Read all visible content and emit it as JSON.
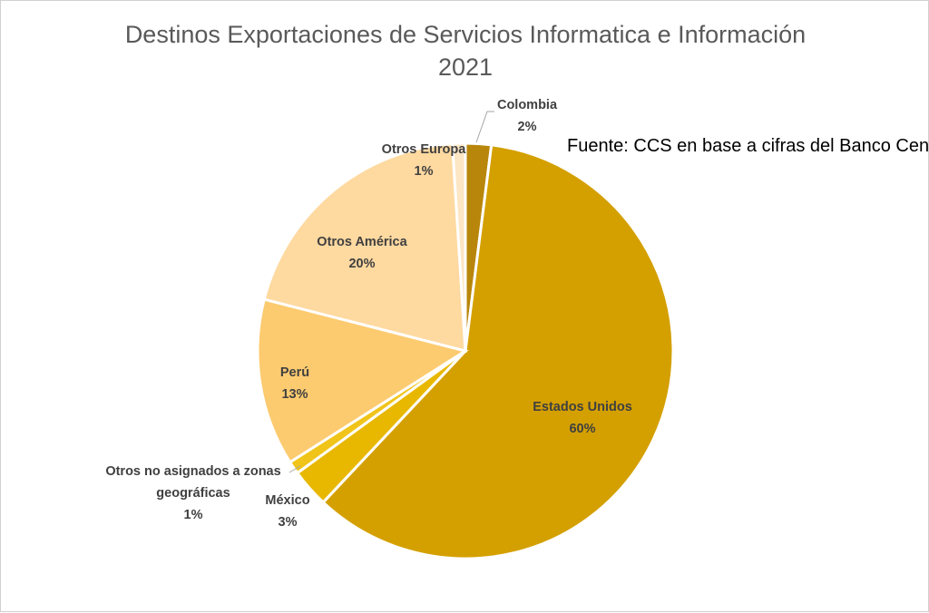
{
  "chart_data": {
    "type": "pie",
    "title": "Destinos Exportaciones de Servicios Informatica e Información",
    "subtitle": "2021",
    "note": "Fuente: CCS en base a cifras del Banco Central",
    "slices": [
      {
        "label": "Colombia",
        "value": 2,
        "display": "2%",
        "color": "#b8860b",
        "label_lines": [
          "Colombia"
        ]
      },
      {
        "label": "Estados Unidos",
        "value": 60,
        "display": "60%",
        "color": "#d4a000",
        "label_lines": [
          "Estados Unidos"
        ]
      },
      {
        "label": "México",
        "value": 3,
        "display": "3%",
        "color": "#e8b800",
        "label_lines": [
          "México"
        ]
      },
      {
        "label": "Otros no asignados a zonas geográficas",
        "value": 1,
        "display": "1%",
        "color": "#f0c419",
        "label_lines": [
          "Otros no asignados a zonas",
          "geográficas"
        ]
      },
      {
        "label": "Perú",
        "value": 13,
        "display": "13%",
        "color": "#fccb70",
        "label_lines": [
          "Perú"
        ]
      },
      {
        "label": "Otros América",
        "value": 20,
        "display": "20%",
        "color": "#fed9a0",
        "label_lines": [
          "Otros América"
        ]
      },
      {
        "label": "Otros Europa",
        "value": 1,
        "display": "1%",
        "color": "#fde6c4",
        "label_lines": [
          "Otros Europa"
        ]
      }
    ]
  }
}
